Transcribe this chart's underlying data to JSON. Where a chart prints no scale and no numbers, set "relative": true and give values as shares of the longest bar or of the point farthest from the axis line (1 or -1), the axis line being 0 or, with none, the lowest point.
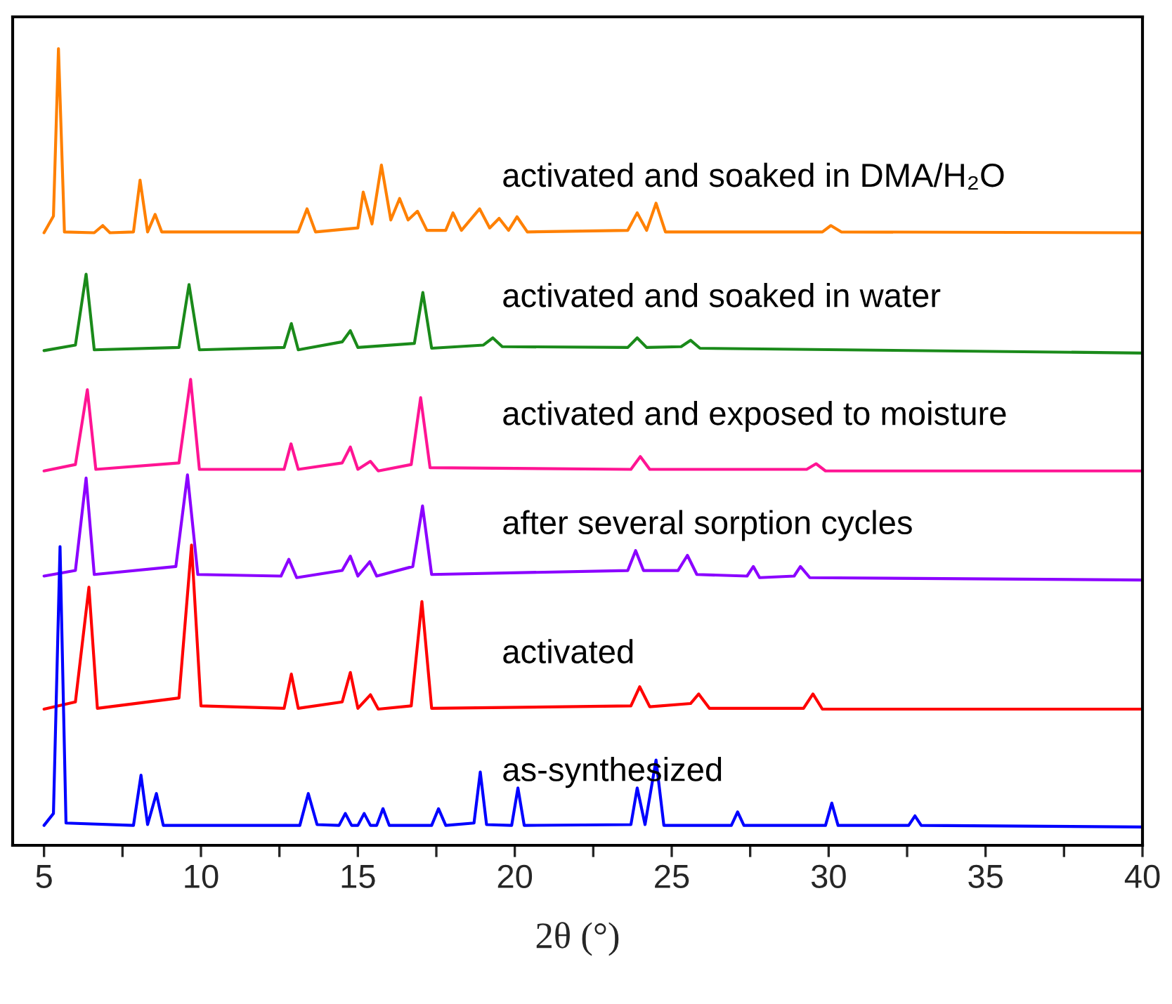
{
  "chart_data": {
    "type": "line",
    "relative": true,
    "xlabel": "2θ (°)",
    "xlim": [
      4,
      40
    ],
    "xticks": [
      5,
      {
        "value": 7.5,
        "label": null
      },
      10,
      {
        "value": 12.5,
        "label": null
      },
      15,
      {
        "value": 17.5,
        "label": null
      },
      20,
      {
        "value": 22.5,
        "label": null
      },
      25,
      {
        "value": 27.5,
        "label": null
      },
      30,
      {
        "value": 32.5,
        "label": null
      },
      35,
      {
        "value": 37.5,
        "label": null
      },
      40
    ],
    "grid": false,
    "legend": false,
    "marker": "none",
    "line_style": "solid",
    "series": [
      {
        "name": "activated and soaked in DMA/H₂O",
        "color": "#ff8000",
        "x": [
          5.0,
          5.3,
          5.46,
          5.65,
          6.6,
          6.87,
          7.1,
          7.85,
          8.06,
          8.3,
          8.54,
          8.75,
          13.1,
          13.38,
          13.65,
          15.0,
          15.17,
          15.45,
          15.75,
          16.05,
          16.33,
          16.6,
          16.9,
          17.2,
          17.8,
          18.03,
          18.3,
          18.88,
          19.2,
          19.5,
          19.8,
          20.07,
          20.4,
          23.6,
          23.9,
          24.2,
          24.5,
          24.8,
          29.8,
          30.07,
          30.4,
          40.0
        ],
        "values": [
          0.769,
          0.79,
          1.0,
          0.77,
          0.769,
          0.778,
          0.769,
          0.77,
          0.835,
          0.77,
          0.792,
          0.77,
          0.77,
          0.799,
          0.77,
          0.775,
          0.82,
          0.78,
          0.854,
          0.785,
          0.812,
          0.785,
          0.796,
          0.772,
          0.772,
          0.794,
          0.772,
          0.799,
          0.775,
          0.787,
          0.772,
          0.789,
          0.77,
          0.772,
          0.794,
          0.772,
          0.806,
          0.77,
          0.77,
          0.778,
          0.77,
          0.769
        ]
      },
      {
        "name": "activated and soaked in water",
        "color": "#1a8a1a",
        "x": [
          5.0,
          6.0,
          6.34,
          6.6,
          9.3,
          9.62,
          9.95,
          12.65,
          12.88,
          13.1,
          14.5,
          14.76,
          15.0,
          16.8,
          17.07,
          17.35,
          19.0,
          19.3,
          19.6,
          23.6,
          23.9,
          24.2,
          25.3,
          25.6,
          25.9,
          40.0
        ],
        "values": [
          0.621,
          0.628,
          0.717,
          0.622,
          0.625,
          0.704,
          0.622,
          0.625,
          0.655,
          0.622,
          0.632,
          0.646,
          0.625,
          0.63,
          0.694,
          0.624,
          0.628,
          0.637,
          0.626,
          0.625,
          0.637,
          0.625,
          0.626,
          0.634,
          0.624,
          0.618
        ]
      },
      {
        "name": "activated and exposed to moisture",
        "color": "#ff1493",
        "x": [
          5.0,
          6.0,
          6.38,
          6.65,
          9.3,
          9.67,
          9.95,
          12.65,
          12.87,
          13.1,
          14.5,
          14.76,
          15.0,
          15.4,
          15.65,
          16.7,
          17.0,
          17.3,
          23.7,
          24.0,
          24.3,
          29.3,
          29.6,
          29.9,
          40.0
        ],
        "values": [
          0.47,
          0.478,
          0.572,
          0.472,
          0.48,
          0.585,
          0.472,
          0.472,
          0.504,
          0.472,
          0.48,
          0.5,
          0.472,
          0.482,
          0.47,
          0.478,
          0.562,
          0.474,
          0.472,
          0.488,
          0.472,
          0.472,
          0.479,
          0.47,
          0.47
        ]
      },
      {
        "name": "after several sorption cycles",
        "color": "#8b00ff",
        "x": [
          5.0,
          6.0,
          6.34,
          6.6,
          9.2,
          9.57,
          9.9,
          12.55,
          12.8,
          13.05,
          14.5,
          14.76,
          15.0,
          15.38,
          15.6,
          16.75,
          17.06,
          17.35,
          23.6,
          23.85,
          24.1,
          25.2,
          25.5,
          25.8,
          27.4,
          27.6,
          27.8,
          28.9,
          29.1,
          29.4,
          40.0
        ],
        "values": [
          0.338,
          0.345,
          0.461,
          0.34,
          0.35,
          0.465,
          0.34,
          0.338,
          0.359,
          0.336,
          0.345,
          0.363,
          0.338,
          0.356,
          0.338,
          0.35,
          0.426,
          0.34,
          0.345,
          0.37,
          0.345,
          0.345,
          0.364,
          0.34,
          0.338,
          0.35,
          0.336,
          0.338,
          0.35,
          0.336,
          0.333
        ]
      },
      {
        "name": "activated",
        "color": "#ff0000",
        "x": [
          5.0,
          6.0,
          6.43,
          6.7,
          9.3,
          9.7,
          10.0,
          12.65,
          12.88,
          13.1,
          14.5,
          14.76,
          15.0,
          15.4,
          15.65,
          16.7,
          17.04,
          17.35,
          23.7,
          23.98,
          24.3,
          25.6,
          25.86,
          26.2,
          29.2,
          29.5,
          29.8,
          40.0
        ],
        "values": [
          0.171,
          0.18,
          0.324,
          0.172,
          0.185,
          0.377,
          0.175,
          0.172,
          0.215,
          0.172,
          0.18,
          0.217,
          0.172,
          0.189,
          0.171,
          0.175,
          0.306,
          0.172,
          0.175,
          0.199,
          0.174,
          0.178,
          0.19,
          0.172,
          0.172,
          0.19,
          0.171,
          0.171
        ]
      },
      {
        "name": "as-synthesized",
        "color": "#0000ff",
        "x": [
          5.0,
          5.3,
          5.51,
          5.7,
          7.85,
          8.09,
          8.3,
          8.58,
          8.8,
          13.15,
          13.42,
          13.7,
          14.4,
          14.6,
          14.8,
          15.0,
          15.2,
          15.4,
          15.6,
          15.8,
          16.0,
          17.35,
          17.57,
          17.8,
          18.7,
          18.9,
          19.1,
          19.9,
          20.1,
          20.3,
          23.7,
          23.9,
          24.15,
          24.5,
          24.75,
          26.9,
          27.1,
          27.3,
          29.9,
          30.1,
          30.3,
          32.55,
          32.75,
          32.95,
          40.0
        ],
        "values": [
          0.025,
          0.04,
          0.375,
          0.028,
          0.025,
          0.088,
          0.026,
          0.065,
          0.025,
          0.025,
          0.065,
          0.026,
          0.025,
          0.04,
          0.025,
          0.025,
          0.04,
          0.025,
          0.025,
          0.046,
          0.025,
          0.025,
          0.046,
          0.025,
          0.028,
          0.092,
          0.026,
          0.025,
          0.072,
          0.025,
          0.026,
          0.072,
          0.026,
          0.107,
          0.025,
          0.025,
          0.042,
          0.025,
          0.025,
          0.053,
          0.025,
          0.025,
          0.037,
          0.025,
          0.023
        ]
      }
    ]
  }
}
